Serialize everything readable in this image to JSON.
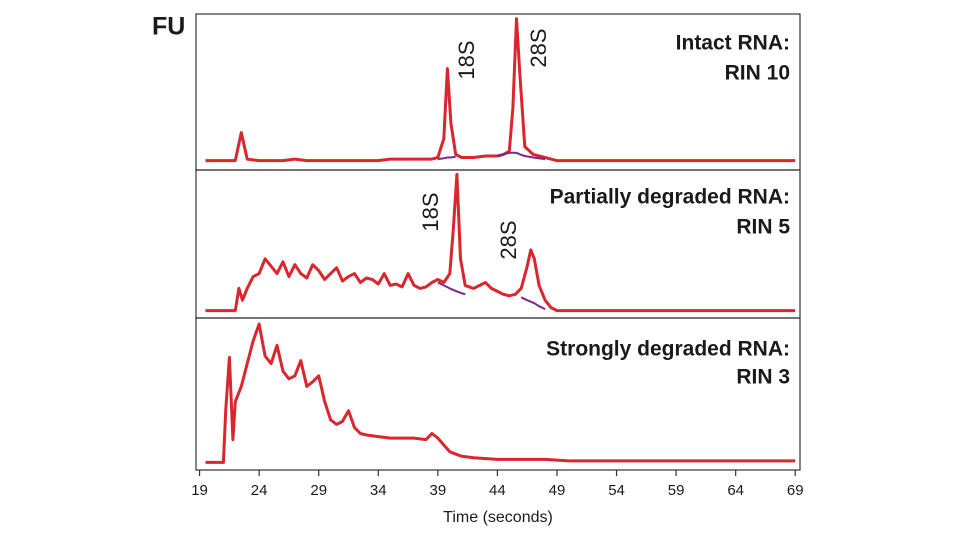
{
  "chart_data": [
    {
      "type": "line",
      "ylabel": "FU",
      "title": "Intact RNA:",
      "subtitle": "RIN 10",
      "annotations": [
        "18S",
        "28S"
      ],
      "xlim": [
        18.7,
        69.4
      ],
      "ylim": [
        0,
        100
      ],
      "x": [
        19.5,
        20,
        21,
        22,
        22.5,
        23,
        24,
        25,
        26,
        27,
        28,
        29,
        30,
        31,
        32,
        33,
        34,
        35,
        36,
        37,
        38,
        38.5,
        39,
        39.5,
        39.8,
        40.1,
        40.5,
        41,
        42,
        43,
        44,
        44.5,
        45,
        45.3,
        45.6,
        45.9,
        46.3,
        47,
        48,
        48.5,
        49,
        50,
        52,
        54,
        56,
        58,
        60,
        62,
        64,
        66,
        68,
        69
      ],
      "series": [
        {
          "color": "#d9262f",
          "values": [
            6,
            6,
            6,
            6,
            24,
            7,
            6,
            6,
            6,
            7,
            6,
            6,
            6,
            6,
            6,
            6,
            6,
            7,
            7,
            7,
            7,
            7,
            8,
            20,
            65,
            30,
            10,
            8,
            8,
            9,
            9,
            10,
            12,
            40,
            97,
            60,
            15,
            10,
            8,
            7,
            6,
            6,
            6,
            6,
            6,
            6,
            6,
            6,
            6,
            6,
            6,
            6
          ]
        },
        {
          "color": "#7a2a8a",
          "values": [
            null,
            null,
            null,
            null,
            null,
            null,
            null,
            null,
            null,
            null,
            null,
            null,
            null,
            null,
            null,
            null,
            null,
            null,
            null,
            null,
            null,
            null,
            7,
            7.5,
            8,
            8,
            8.5,
            null,
            null,
            null,
            9,
            10,
            11,
            11,
            11,
            10,
            9,
            8,
            7,
            null,
            null,
            null,
            null,
            null,
            null,
            null,
            null,
            null,
            null,
            null,
            null,
            null
          ]
        }
      ]
    },
    {
      "type": "line",
      "title": "Partially degraded RNA:",
      "subtitle": "RIN 5",
      "annotations": [
        "18S",
        "28S"
      ],
      "xlim": [
        18.7,
        69.4
      ],
      "ylim": [
        0,
        100
      ],
      "x": [
        19.5,
        20,
        21,
        22,
        22.3,
        22.6,
        23,
        23.5,
        24,
        24.5,
        25,
        25.5,
        26,
        26.5,
        27,
        27.5,
        28,
        28.5,
        29,
        29.5,
        30,
        30.5,
        31,
        31.5,
        32,
        32.5,
        33,
        33.5,
        34,
        34.5,
        35,
        35.5,
        36,
        36.5,
        37,
        37.5,
        38,
        38.5,
        39,
        39.5,
        40,
        40.3,
        40.6,
        40.9,
        41.3,
        42,
        42.5,
        43,
        43.5,
        44,
        44.5,
        45,
        45.5,
        46,
        46.5,
        46.8,
        47.1,
        47.5,
        48,
        48.5,
        49,
        50,
        52,
        54,
        56,
        58,
        60,
        62,
        64,
        66,
        68,
        69
      ],
      "series": [
        {
          "color": "#d9262f",
          "values": [
            5,
            5,
            5,
            5,
            20,
            12,
            20,
            28,
            30,
            40,
            35,
            30,
            38,
            28,
            36,
            30,
            27,
            36,
            32,
            26,
            30,
            34,
            25,
            28,
            30,
            24,
            27,
            26,
            23,
            30,
            22,
            23,
            21,
            30,
            22,
            20,
            21,
            24,
            26,
            24,
            30,
            60,
            97,
            40,
            22,
            20,
            22,
            24,
            20,
            18,
            16,
            15,
            16,
            20,
            35,
            46,
            40,
            22,
            12,
            7,
            5,
            5,
            5,
            5,
            5,
            5,
            5,
            5,
            5,
            5,
            5,
            5
          ]
        },
        {
          "color": "#7a2a8a",
          "values": [
            null,
            null,
            null,
            null,
            null,
            null,
            null,
            null,
            null,
            null,
            null,
            null,
            null,
            null,
            null,
            null,
            null,
            null,
            null,
            null,
            null,
            null,
            null,
            null,
            null,
            null,
            null,
            null,
            null,
            null,
            null,
            null,
            null,
            null,
            null,
            null,
            null,
            null,
            24,
            22,
            20,
            19,
            18,
            17,
            16,
            null,
            null,
            null,
            null,
            null,
            null,
            null,
            null,
            14,
            12,
            11,
            10,
            8,
            6,
            null,
            null,
            null,
            null,
            null,
            null,
            null,
            null,
            null,
            null,
            null,
            null,
            null
          ]
        }
      ]
    },
    {
      "type": "line",
      "title": "Strongly degraded RNA:",
      "subtitle": "RIN 3",
      "xlabel": "Time (seconds)",
      "xlim": [
        18.7,
        69.4
      ],
      "ylim": [
        0,
        100
      ],
      "xticks": [
        19,
        24,
        29,
        34,
        39,
        44,
        49,
        54,
        59,
        64,
        69
      ],
      "x": [
        19.5,
        20,
        21,
        21.2,
        21.5,
        21.8,
        22,
        22.5,
        23,
        23.5,
        24,
        24.5,
        25,
        25.5,
        26,
        26.5,
        27,
        27.5,
        28,
        28.5,
        29,
        29.5,
        30,
        30.5,
        31,
        31.5,
        32,
        32.5,
        33,
        34,
        35,
        36,
        37,
        38,
        38.5,
        39,
        40,
        41,
        42,
        44,
        46,
        48,
        50,
        52,
        54,
        56,
        58,
        60,
        62,
        64,
        66,
        68,
        69
      ],
      "series": [
        {
          "color": "#d9262f",
          "values": [
            5,
            5,
            5,
            40,
            74,
            20,
            45,
            55,
            70,
            85,
            96,
            75,
            70,
            82,
            65,
            60,
            62,
            72,
            55,
            58,
            62,
            45,
            33,
            30,
            32,
            39,
            28,
            24,
            23,
            22,
            21,
            21,
            21,
            20,
            24,
            21,
            12,
            9,
            8,
            7,
            7,
            7,
            6,
            6,
            6,
            6,
            6,
            6,
            6,
            6,
            6,
            6,
            6
          ]
        }
      ]
    }
  ]
}
